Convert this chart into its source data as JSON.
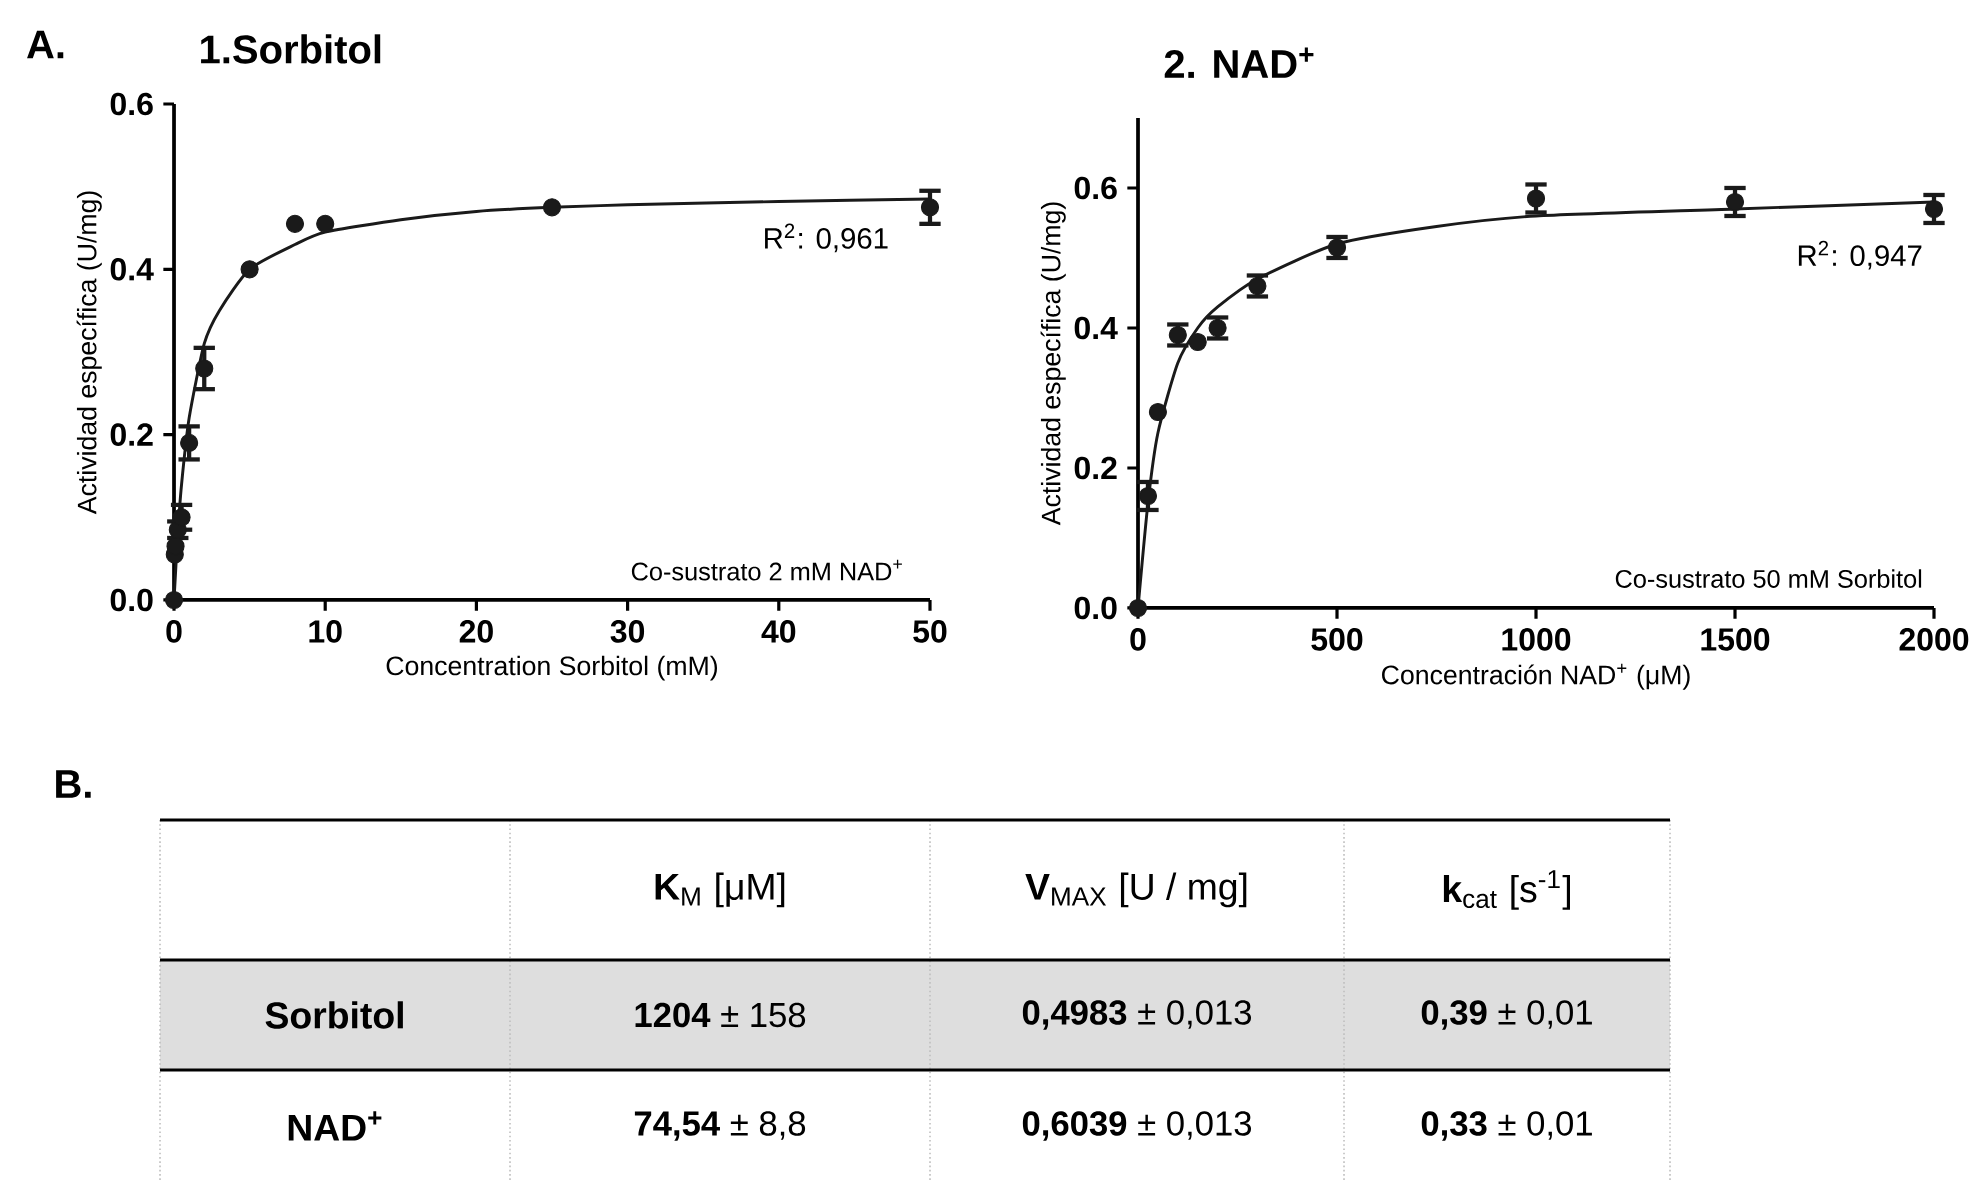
{
  "chart_data": [
    {
      "type": "scatter",
      "title": "1.Sorbitol",
      "xlabel": "Concentration Sorbitol (mM)",
      "ylabel": "Actividad específica (U/mg)",
      "xlim": [
        0,
        50
      ],
      "xticks": [
        0,
        10,
        20,
        30,
        40,
        50
      ],
      "ylim": [
        0,
        0.6
      ],
      "yticks": [
        {
          "value": 0,
          "label": "0.0"
        },
        {
          "value": 0.2,
          "label": "0.2"
        },
        {
          "value": 0.4,
          "label": "0.4"
        },
        {
          "value": 0.6,
          "label": "0.6"
        }
      ],
      "annotations": [
        "A.",
        "R$^{2}$: 0,961",
        "Co-sustrato 2 mM NAD$^{+}$"
      ],
      "series": [
        {
          "type": "scatter",
          "marker": "circle",
          "color": "#1a1a1a",
          "x": [
            0,
            0.05,
            0.1,
            0.25,
            0.5,
            1,
            2,
            5,
            8,
            10,
            25,
            50
          ],
          "values": [
            0,
            0.055,
            0.065,
            0.085,
            0.1,
            0.19,
            0.28,
            0.4,
            0.455,
            0.455,
            0.475,
            0.475
          ],
          "errors": [
            null,
            null,
            null,
            0.01,
            0.015,
            0.02,
            0.025,
            null,
            null,
            null,
            null,
            0.02
          ]
        },
        {
          "type": "line",
          "marker": "none",
          "color": "#1a1a1a",
          "x": [
            0,
            0.25,
            0.5,
            1,
            2,
            3,
            5,
            8,
            10,
            15,
            20,
            25,
            30,
            40,
            50
          ],
          "values": [
            0,
            0.08,
            0.14,
            0.22,
            0.31,
            0.35,
            0.4,
            0.43,
            0.445,
            0.46,
            0.47,
            0.475,
            0.478,
            0.482,
            0.485
          ]
        }
      ]
    },
    {
      "type": "scatter",
      "title": "2. NAD$^{+}$",
      "xlabel": "Concentración NAD$^{+}$ (μM)",
      "ylabel": "Actividad específica (U/mg)",
      "xlim": [
        0,
        2000
      ],
      "xticks": [
        0,
        500,
        1000,
        1500,
        2000
      ],
      "ylim": [
        0,
        0.7
      ],
      "yticks": [
        {
          "value": 0,
          "label": "0.0"
        },
        {
          "value": 0.2,
          "label": "0.2"
        },
        {
          "value": 0.4,
          "label": "0.4"
        },
        {
          "value": 0.6,
          "label": "0.6"
        }
      ],
      "annotations": [
        "R$^{2}$: 0,947",
        "Co-sustrato 50 mM Sorbitol"
      ],
      "series": [
        {
          "type": "scatter",
          "marker": "circle",
          "color": "#1a1a1a",
          "x": [
            0,
            25,
            50,
            100,
            150,
            200,
            300,
            500,
            1000,
            1500,
            2000
          ],
          "values": [
            0,
            0.16,
            0.28,
            0.39,
            0.38,
            0.4,
            0.46,
            0.515,
            0.585,
            0.58,
            0.57
          ],
          "errors": [
            null,
            0.02,
            null,
            0.015,
            null,
            0.015,
            0.015,
            0.015,
            0.02,
            0.02,
            0.02
          ]
        },
        {
          "type": "line",
          "marker": "none",
          "color": "#1a1a1a",
          "x": [
            0,
            25,
            50,
            100,
            150,
            200,
            300,
            500,
            750,
            1000,
            1500,
            2000
          ],
          "values": [
            0,
            0.15,
            0.25,
            0.35,
            0.4,
            0.43,
            0.47,
            0.52,
            0.545,
            0.56,
            0.57,
            0.58
          ]
        }
      ]
    },
    {
      "type": "other",
      "annotations": [
        "B.",
        "**K**$_{M}$ [μM]",
        "**V**$_{MAX}$ [U / mg]",
        "**k**$_{cat}$ [s$^{-1}$]",
        "Sorbitol",
        "**1204** ± 158",
        "**0,4983** ± 0,013",
        "**0,39** ± 0,01",
        "NAD$^{+}$",
        "**74,54** ± 8,8",
        "**0,6039** ± 0,013",
        "**0,33** ± 0,01"
      ]
    }
  ]
}
